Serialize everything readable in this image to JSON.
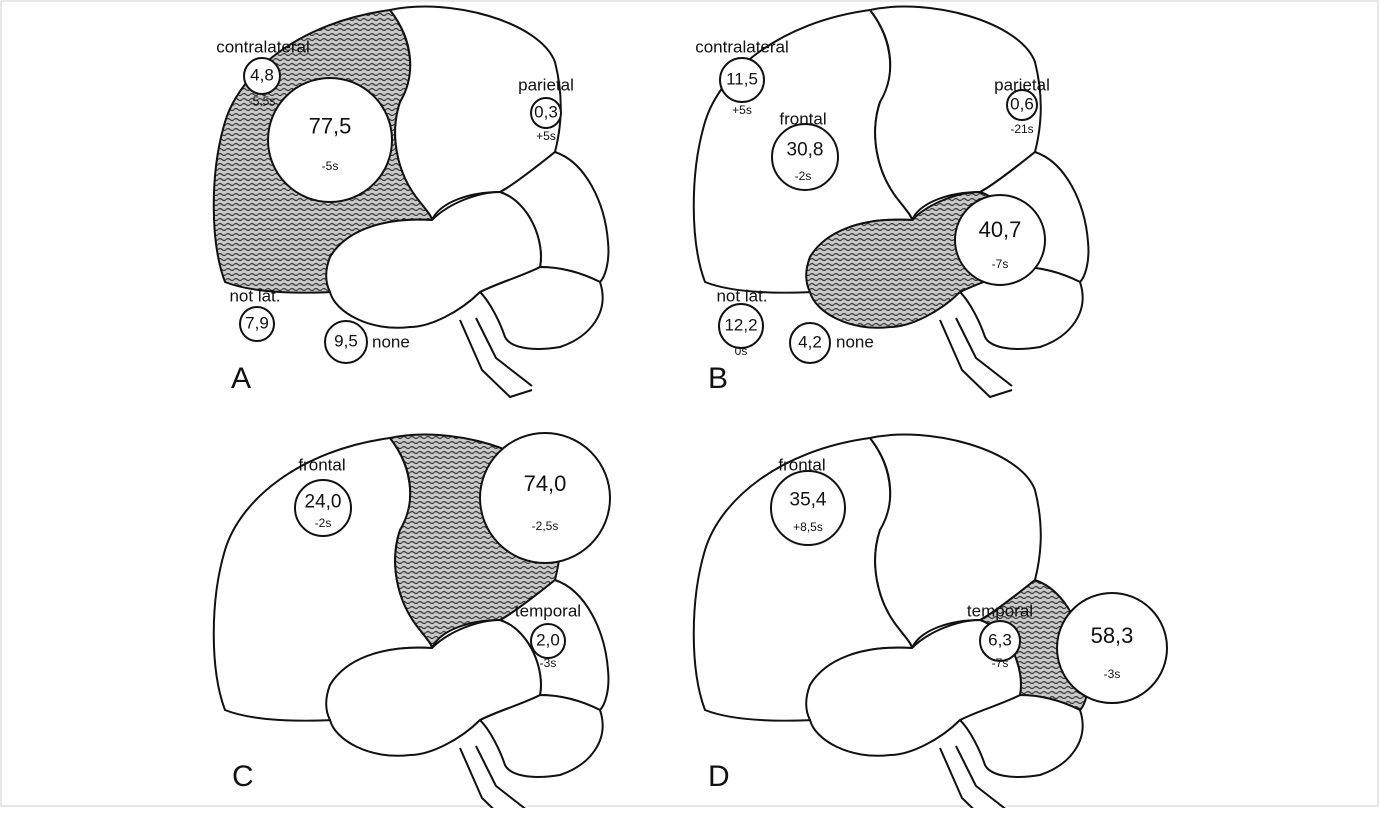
{
  "panels": [
    {
      "label": "A",
      "items": [
        {
          "region": "contralateral",
          "value": "4,8",
          "time": "-5,5s"
        },
        {
          "value": "77,5",
          "time": "-5s"
        },
        {
          "region": "parietal",
          "value": "0,3",
          "time": "+5s"
        },
        {
          "region": "not lat.",
          "value": "7,9"
        },
        {
          "value": "9,5",
          "region": "none"
        }
      ]
    },
    {
      "label": "B",
      "items": [
        {
          "region": "contralateral",
          "value": "11,5",
          "time": "+5s"
        },
        {
          "region": "frontal",
          "value": "30,8",
          "time": "-2s"
        },
        {
          "region": "parietal",
          "value": "0,6",
          "time": "-21s"
        },
        {
          "value": "40,7",
          "time": "-7s"
        },
        {
          "region": "not lat.",
          "value": "12,2",
          "time": "0s"
        },
        {
          "value": "4,2",
          "region": "none"
        }
      ]
    },
    {
      "label": "C",
      "items": [
        {
          "region": "frontal",
          "value": "24,0",
          "time": "-2s"
        },
        {
          "value": "74,0",
          "time": "-2,5s"
        },
        {
          "region": "temporal",
          "value": "2,0",
          "time": "-3s"
        }
      ]
    },
    {
      "label": "D",
      "items": [
        {
          "region": "frontal",
          "value": "35,4",
          "time": "+8,5s"
        },
        {
          "region": "temporal",
          "value": "6,3",
          "time": "-7s"
        },
        {
          "value": "58,3",
          "time": "-3s"
        }
      ]
    }
  ]
}
